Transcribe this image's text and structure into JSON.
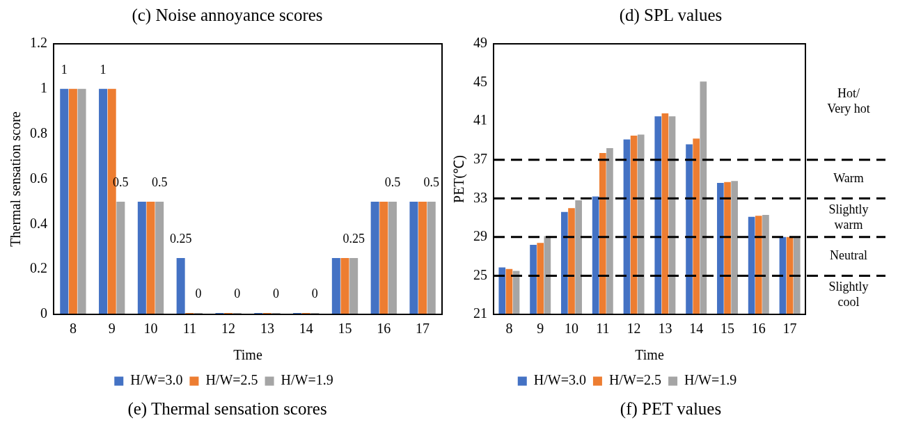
{
  "chart_data": [
    {
      "type": "bar",
      "title": "(e) Thermal sensation scores",
      "annotations": [
        "(c) Noise annoyance scores"
      ],
      "xlabel": "Time",
      "ylabel": "Thermal sensation score",
      "categories": [
        "8",
        "9",
        "10",
        "11",
        "12",
        "13",
        "14",
        "15",
        "16",
        "17"
      ],
      "ylim": [
        0,
        1.2
      ],
      "yticks": [
        0,
        0.2,
        0.4,
        0.6,
        0.8,
        1,
        1.2
      ],
      "grid": false,
      "legend": "bottom",
      "series": [
        {
          "name": "H/W=3.0",
          "color": "#4472c4",
          "values": [
            1,
            1,
            0.5,
            0.25,
            0,
            0,
            0,
            0.25,
            0.5,
            0.5
          ],
          "value_labels": [
            "1",
            "1",
            null,
            "0.25",
            null,
            null,
            null,
            null,
            null,
            null
          ]
        },
        {
          "name": "H/W=2.5",
          "color": "#ed7d31",
          "values": [
            1,
            1,
            0.5,
            0,
            0,
            0,
            0,
            0.25,
            0.5,
            0.5
          ]
        },
        {
          "name": "H/W=1.9",
          "color": "#a5a5a5",
          "values": [
            1,
            0.5,
            0.5,
            0,
            0,
            0,
            0,
            0.25,
            0.5,
            0.5
          ],
          "value_labels": [
            null,
            "0.5",
            "0.5",
            "0",
            "0",
            "0",
            "0",
            "0.25",
            "0.5",
            "0.5"
          ]
        }
      ]
    },
    {
      "type": "bar",
      "title": "(f) PET values",
      "annotations": [
        "(d) SPL values",
        "Hot/\nVery hot",
        "Warm",
        "Slightly\nwarm",
        "Neutral",
        "Slightly\ncool"
      ],
      "xlabel": "Time",
      "ylabel": "PET(℃)",
      "categories": [
        "8",
        "9",
        "10",
        "11",
        "12",
        "13",
        "14",
        "15",
        "16",
        "17"
      ],
      "ylim": [
        21,
        49
      ],
      "yticks": [
        21,
        25,
        29,
        33,
        37,
        41,
        45,
        49
      ],
      "grid": false,
      "legend": "bottom",
      "series": [
        {
          "name": "H/W=3.0",
          "color": "#4472c4",
          "values": [
            25.85,
            28.2,
            31.6,
            33.2,
            39.1,
            41.5,
            38.6,
            34.6,
            31.1,
            29.0
          ]
        },
        {
          "name": "H/W=2.5",
          "color": "#ed7d31",
          "values": [
            25.7,
            28.4,
            32.0,
            37.7,
            39.5,
            41.8,
            39.2,
            34.7,
            31.2,
            29.0
          ]
        },
        {
          "name": "H/W=1.9",
          "color": "#a5a5a5",
          "values": [
            25.5,
            29.1,
            32.8,
            38.2,
            39.6,
            41.5,
            45.1,
            34.8,
            31.3,
            29.0
          ]
        }
      ],
      "ref_lines": [
        {
          "axis": "y",
          "value": 25,
          "color": "#000000",
          "line_style": "dashed"
        },
        {
          "axis": "y",
          "value": 29,
          "color": "#000000",
          "line_style": "dashed"
        },
        {
          "axis": "y",
          "value": 33,
          "color": "#000000",
          "line_style": "dashed"
        },
        {
          "axis": "y",
          "value": 37,
          "color": "#000000",
          "line_style": "dashed"
        }
      ]
    }
  ]
}
